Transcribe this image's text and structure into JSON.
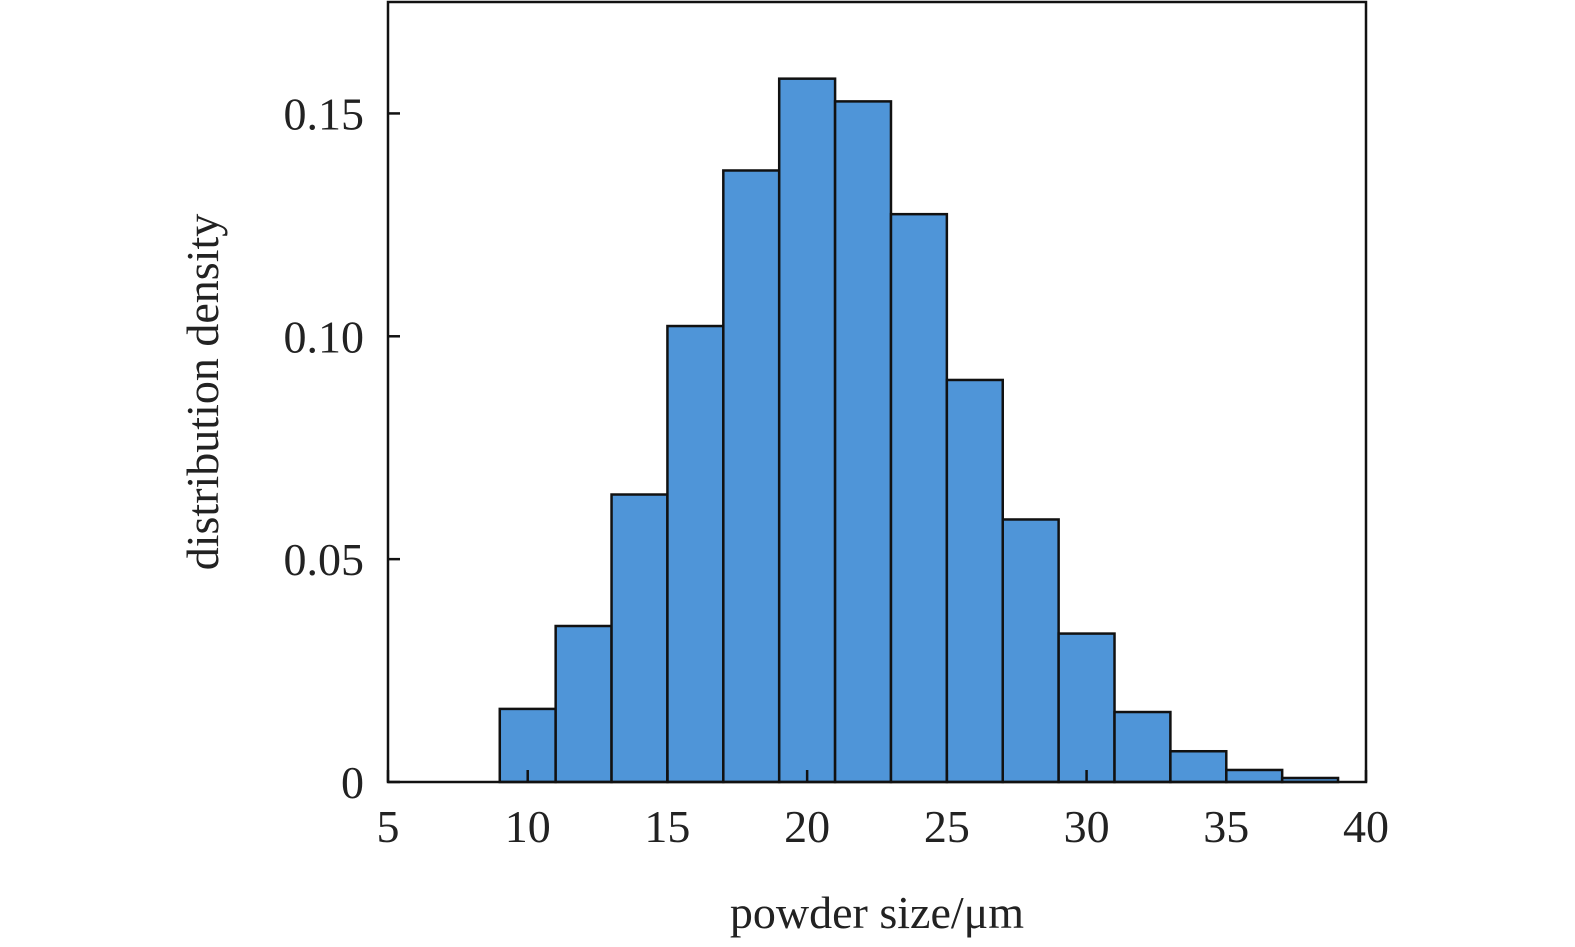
{
  "chart_data": {
    "type": "bar",
    "subtype": "histogram",
    "xlabel": "powder size/μm",
    "ylabel": "distribution density",
    "xlim": [
      5,
      40
    ],
    "ylim": [
      0,
      0.175
    ],
    "xticks": [
      5,
      10,
      15,
      20,
      25,
      30,
      35,
      40
    ],
    "xtick_labels": [
      "5",
      "10",
      "15",
      "20",
      "25",
      "30",
      "35",
      "40"
    ],
    "yticks": [
      0,
      0.05,
      0.1,
      0.15
    ],
    "ytick_labels": [
      "0",
      "0.05",
      "0.10",
      "0.15"
    ],
    "bin_width": 2,
    "bins": [
      {
        "start": 9,
        "end": 11,
        "value": 0.0164
      },
      {
        "start": 11,
        "end": 13,
        "value": 0.035
      },
      {
        "start": 13,
        "end": 15,
        "value": 0.0645
      },
      {
        "start": 15,
        "end": 17,
        "value": 0.1023
      },
      {
        "start": 17,
        "end": 19,
        "value": 0.1372
      },
      {
        "start": 19,
        "end": 21,
        "value": 0.1578
      },
      {
        "start": 21,
        "end": 23,
        "value": 0.1527
      },
      {
        "start": 23,
        "end": 25,
        "value": 0.1274
      },
      {
        "start": 25,
        "end": 27,
        "value": 0.0902
      },
      {
        "start": 27,
        "end": 29,
        "value": 0.0589
      },
      {
        "start": 29,
        "end": 31,
        "value": 0.0333
      },
      {
        "start": 31,
        "end": 33,
        "value": 0.0157
      },
      {
        "start": 33,
        "end": 35,
        "value": 0.0069
      },
      {
        "start": 35,
        "end": 37,
        "value": 0.0027
      },
      {
        "start": 37,
        "end": 39,
        "value": 0.0009
      }
    ],
    "bar_color": "#4f95d8",
    "edge_color": "#111111",
    "grid": false,
    "legend": "none"
  }
}
